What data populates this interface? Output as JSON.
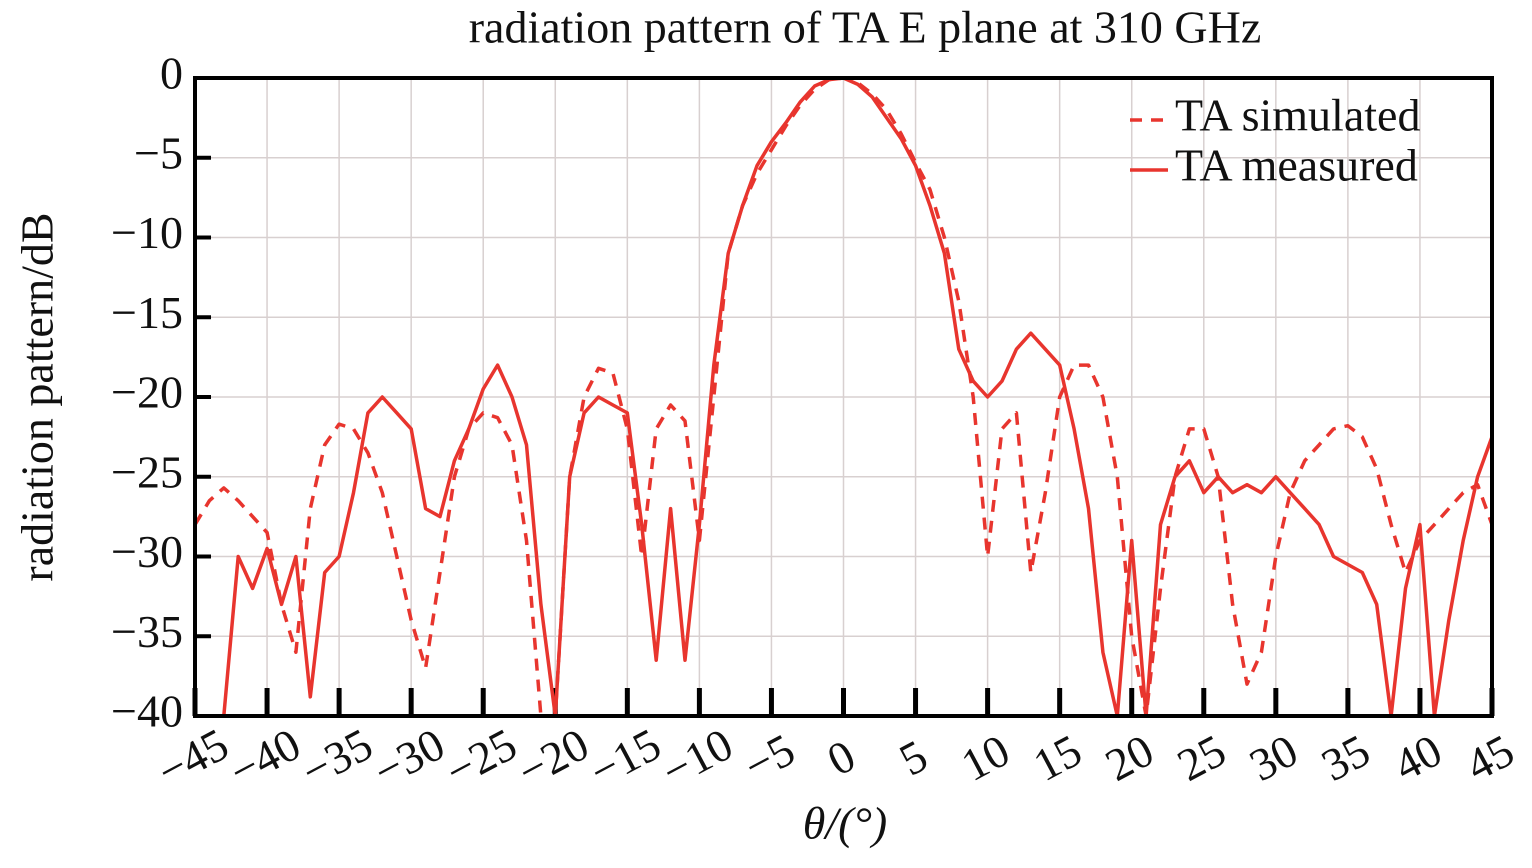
{
  "chart_data": {
    "type": "line",
    "title": "radiation pattern of TA E plane at 310 GHz",
    "x_label": "θ/(°)",
    "y_label": "radiation pattern/dB",
    "x": [
      -45,
      -44,
      -43,
      -42,
      -41,
      -40,
      -39,
      -38,
      -37,
      -36,
      -35,
      -34,
      -33,
      -32,
      -31,
      -30,
      -29,
      -28,
      -27,
      -26,
      -25,
      -24,
      -23,
      -22,
      -21,
      -20,
      -19,
      -18,
      -17,
      -16,
      -15,
      -14,
      -13,
      -12,
      -11,
      -10,
      -9,
      -8,
      -7,
      -6,
      -5,
      -4,
      -3,
      -2,
      -1,
      0,
      1,
      2,
      3,
      4,
      5,
      6,
      7,
      8,
      9,
      10,
      11,
      12,
      13,
      14,
      15,
      16,
      17,
      18,
      19,
      20,
      21,
      22,
      23,
      24,
      25,
      26,
      27,
      28,
      29,
      30,
      31,
      32,
      33,
      34,
      35,
      36,
      37,
      38,
      39,
      40,
      41,
      42,
      43,
      44,
      45
    ],
    "series": [
      {
        "name": "TA simulated",
        "color": "#e8352e",
        "dashed": true,
        "values": [
          -28,
          -26.5,
          -25.7,
          -26.5,
          -27.5,
          -28.5,
          -33,
          -36,
          -27,
          -23,
          -21.7,
          -22,
          -23.5,
          -26,
          -30,
          -34,
          -37,
          -31,
          -25,
          -22,
          -21,
          -21.3,
          -23,
          -29,
          -40,
          -40,
          -25,
          -20,
          -18.2,
          -18.5,
          -22,
          -30,
          -22,
          -20.5,
          -21.5,
          -29,
          -20,
          -11,
          -8,
          -6,
          -4.5,
          -3,
          -1.7,
          -0.7,
          -0.1,
          0,
          -0.3,
          -1,
          -2,
          -3.5,
          -5.3,
          -7,
          -10,
          -14,
          -20,
          -30,
          -22,
          -21,
          -31,
          -26,
          -20,
          -18,
          -18,
          -20,
          -25,
          -35,
          -40,
          -32,
          -25,
          -22,
          -22,
          -25,
          -33,
          -38,
          -36,
          -30,
          -26,
          -24,
          -23,
          -22,
          -21.8,
          -22.5,
          -24.5,
          -28,
          -31,
          -29,
          -28,
          -27,
          -26,
          -25.5,
          -28
        ]
      },
      {
        "name": "TA measured",
        "color": "#e8352e",
        "dashed": false,
        "values": [
          null,
          null,
          -40,
          -30,
          -32,
          -29.5,
          -33,
          -30,
          -38.8,
          -31,
          -30,
          -26,
          -21,
          -20,
          -21,
          -22,
          -27,
          -27.5,
          -24,
          -22,
          -19.5,
          -18,
          -20,
          -23,
          -33,
          -40,
          -25,
          -21,
          -20,
          -20.5,
          -21,
          -28,
          -36.5,
          -27,
          -36.5,
          -28,
          -18,
          -11,
          -8,
          -5.5,
          -4,
          -2.8,
          -1.5,
          -0.5,
          -0.1,
          0,
          -0.4,
          -1.2,
          -2.5,
          -3.8,
          -5.5,
          -8,
          -11,
          -17,
          -19,
          -20,
          -19,
          -17,
          -16,
          -17,
          -18,
          -22,
          -27,
          -36,
          -40,
          -29,
          -40,
          -28,
          -25,
          -24,
          -26,
          -25,
          -26,
          -25.5,
          -26,
          -25,
          -26,
          -27,
          -28,
          -30,
          -30.5,
          -31,
          -33,
          -40,
          -32,
          -28,
          -40,
          -34,
          -29,
          -25,
          -22.5
        ]
      }
    ],
    "xlim": [
      -45,
      45
    ],
    "ylim": [
      -40,
      0
    ],
    "xticks": [
      {
        "value": -45,
        "label": "−45"
      },
      {
        "value": -40,
        "label": "−40"
      },
      {
        "value": -35,
        "label": "−35"
      },
      {
        "value": -30,
        "label": "−30"
      },
      {
        "value": -25,
        "label": "−25"
      },
      {
        "value": -20,
        "label": "−20"
      },
      {
        "value": -15,
        "label": "−15"
      },
      {
        "value": -10,
        "label": "−10"
      },
      {
        "value": -5,
        "label": "−5"
      },
      0,
      5,
      10,
      15,
      20,
      25,
      30,
      35,
      40,
      45
    ],
    "yticks": [
      {
        "value": -40,
        "label": "−40"
      },
      {
        "value": -35,
        "label": "−35"
      },
      {
        "value": -30,
        "label": "−30"
      },
      {
        "value": -25,
        "label": "−25"
      },
      {
        "value": -20,
        "label": "−20"
      },
      {
        "value": -15,
        "label": "−15"
      },
      {
        "value": -10,
        "label": "−10"
      },
      {
        "value": -5,
        "label": "−5"
      },
      0
    ],
    "grid": true,
    "legend": "upper right"
  }
}
